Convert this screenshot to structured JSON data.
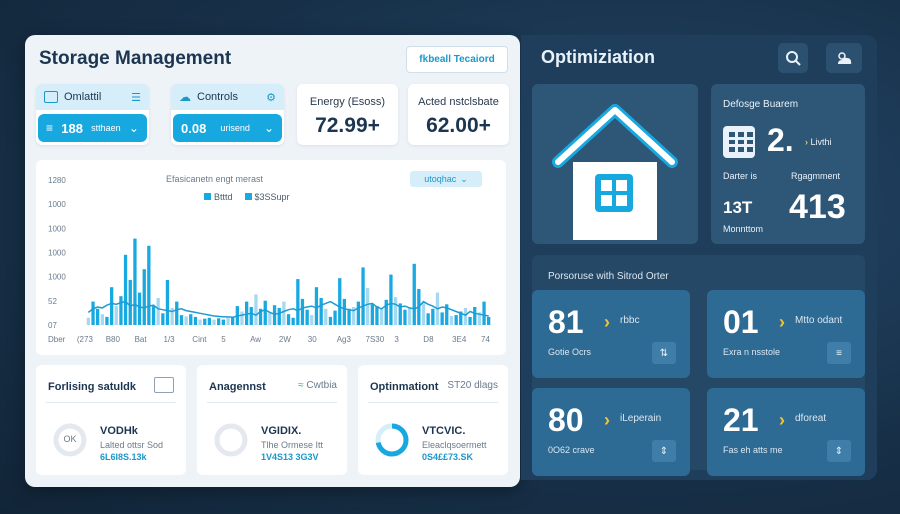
{
  "left_panel": {
    "title": "Storage Management",
    "header_select": "fkbeall Tecaiord",
    "kpis": [
      {
        "label": "Omlattil",
        "value": "188",
        "unit": "stthaen",
        "style": "blue"
      },
      {
        "label": "Controls",
        "value": "0.08",
        "unit": "urisend",
        "style": "blue"
      },
      {
        "label": "Energy (Esoss)",
        "value": "72.99+",
        "style": "plain"
      },
      {
        "label": "Acted nstclsbate",
        "value": "62.00+",
        "style": "plain"
      }
    ],
    "chart": {
      "title": "Efasicanetn engt merast",
      "dropdown": "utoqhac",
      "legend": [
        "Btttd",
        "$3SSupr"
      ]
    },
    "bottom_cards": [
      {
        "title": "Forlising satuldk",
        "meta": "",
        "line1": "VODHk",
        "line2": "Lalted ottsr Sod",
        "line3": "6L6I8S.13k",
        "ring_value": "OK",
        "ring_fill": 0.0
      },
      {
        "title": "Anagennst",
        "meta": "Cwtbia",
        "line1": "VGIDIX.",
        "line2": "Tlhe Ormese Itt",
        "line3": "1V4S13 3G3V",
        "ring_value": "",
        "ring_fill": 0.0
      },
      {
        "title": "Optinmationt",
        "meta": "ST20 dlags",
        "line1": "VTCVIC.",
        "line2": "Eleaclqsoermett",
        "line3": "0S4££73.SK",
        "ring_value": "",
        "ring_fill": 0.72
      }
    ]
  },
  "chart_data": {
    "type": "bar",
    "title": "Efasicanetn engt merast",
    "ylim": [
      0,
      1300
    ],
    "ytick_labels": [
      "1280",
      "1000",
      "1000",
      "1000",
      "1000",
      "52",
      "07"
    ],
    "xtick_labels": [
      "Dber",
      "(273",
      "B80",
      "Bat",
      "1/3",
      "Cint",
      "5",
      "Aw",
      "2W",
      "30",
      "Ag3",
      "7S30",
      "3",
      "D8",
      "3E4",
      "74"
    ],
    "series": [
      {
        "name": "Btttd",
        "values": [
          80,
          260,
          180,
          120,
          90,
          420,
          210,
          320,
          780,
          500,
          960,
          360,
          620,
          880,
          210,
          300,
          130,
          500,
          190,
          260,
          110,
          95,
          120,
          90,
          60,
          70,
          80,
          60,
          75,
          60,
          80,
          90,
          210,
          150,
          260,
          200,
          340,
          180,
          270,
          140,
          220,
          190,
          260,
          120,
          80,
          510,
          290,
          170,
          110,
          420,
          300,
          180,
          90,
          160,
          520,
          290,
          180,
          200,
          260,
          640,
          410,
          230,
          210,
          180,
          280,
          560,
          310,
          240,
          170,
          190,
          680,
          400,
          260,
          130,
          180,
          360,
          140,
          230,
          100,
          110,
          150,
          190,
          90,
          200,
          140,
          260,
          90
        ],
        "style": "bars"
      },
      {
        "name": "$3SSupr",
        "values": [
          140,
          180,
          200,
          190,
          220,
          240,
          230,
          250,
          260,
          210,
          230,
          200,
          190,
          210,
          220,
          180,
          170,
          160,
          150,
          170,
          180,
          160,
          150,
          140,
          130,
          120,
          110,
          100,
          95,
          90,
          90,
          85,
          100,
          110,
          120,
          130,
          110,
          150,
          170,
          140,
          120,
          130,
          150,
          170,
          180,
          160,
          190,
          200,
          210,
          190,
          220,
          240,
          260,
          230,
          200,
          180,
          170,
          160,
          190,
          210,
          230,
          240,
          200,
          180,
          220,
          240,
          230,
          200,
          210,
          190,
          180,
          200,
          260,
          230,
          210,
          180,
          200,
          190,
          170,
          150,
          130,
          110,
          150,
          130,
          120,
          110,
          100
        ],
        "style": "line"
      }
    ]
  },
  "right_panel": {
    "title": "Optimiziation",
    "stat_card": {
      "title": "Defosge Buarem",
      "big1": "2.",
      "big1_label": "Livthi",
      "row2_a": "Darter is",
      "row2_b": "Rgagmment",
      "small_value": "13T",
      "big2": "413",
      "sub": "Monnttom"
    },
    "strip_label": "Porsoruse with Sitrod Orter",
    "metric_cards": [
      {
        "value": "81",
        "label": "rbbc",
        "sub": "Gotie   Ocrs"
      },
      {
        "value": "01",
        "label": "Mtto odant",
        "sub": "Exra n   nsstole"
      },
      {
        "value": "80",
        "label": "iLeperain",
        "sub": "0O62   crave"
      },
      {
        "value": "21",
        "label": "dforeat",
        "sub": "Fas eh   atts me"
      }
    ]
  },
  "colors": {
    "accent": "#18a8e0",
    "bar": "#19a9e1",
    "bar_light": "#a6d9ef",
    "line": "#1e9bd0",
    "arrow": "#f4c430"
  }
}
